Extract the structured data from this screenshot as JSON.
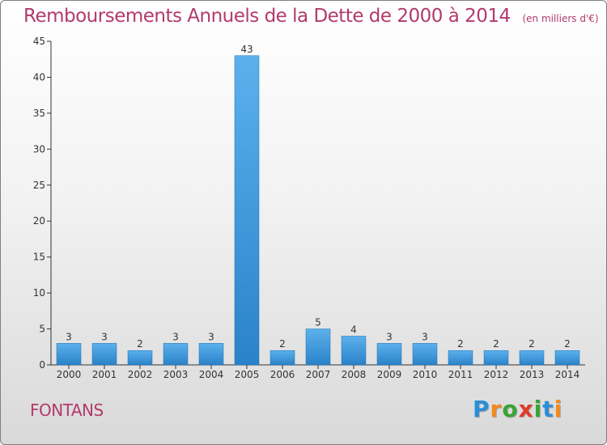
{
  "chart_data": {
    "type": "bar",
    "title": "Remboursements Annuels de la Dette de 2000 à 2014",
    "unit_note": "(en milliers d'€)",
    "categories": [
      "2000",
      "2001",
      "2002",
      "2003",
      "2004",
      "2005",
      "2006",
      "2007",
      "2008",
      "2009",
      "2010",
      "2011",
      "2012",
      "2013",
      "2014"
    ],
    "values": [
      3,
      3,
      2,
      3,
      3,
      43,
      2,
      5,
      4,
      3,
      3,
      2,
      2,
      2,
      2
    ],
    "ylim": [
      0,
      45
    ],
    "yticks": [
      0,
      5,
      10,
      15,
      20,
      25,
      30,
      35,
      40,
      45
    ],
    "grid": false,
    "bar_color": "#3f9be2",
    "bar_color_dark": "#1f73b8"
  },
  "footer": {
    "commune": "FONTANS"
  },
  "brand": {
    "letters": [
      "P",
      "r",
      "o",
      "x",
      "i",
      "t",
      "i"
    ],
    "colors": [
      "#2a8fd6",
      "#f28a1e",
      "#3aa335",
      "#e23a2a",
      "#3aa335",
      "#2a8fd6",
      "#f28a1e"
    ]
  },
  "colors": {
    "title": "#b23a6a",
    "axis": "#333333"
  }
}
